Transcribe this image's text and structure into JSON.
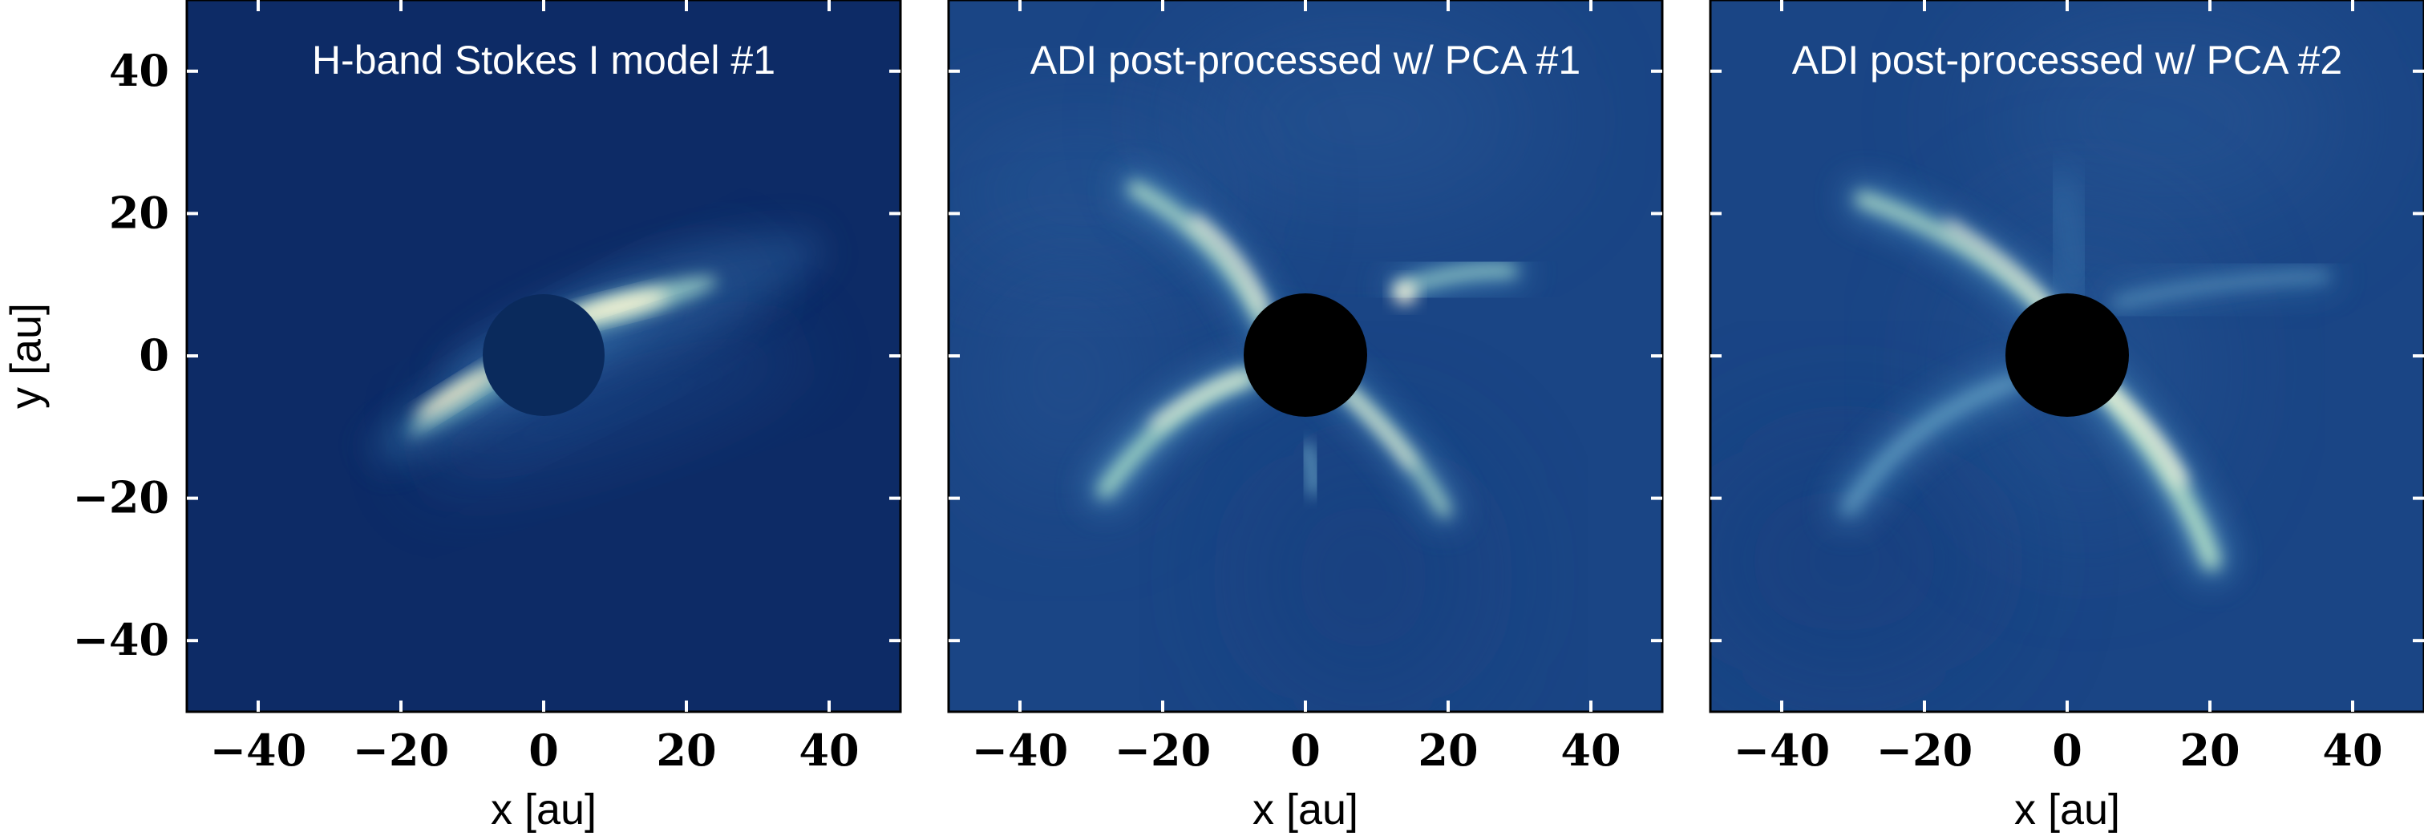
{
  "chart_data": [
    {
      "type": "heatmap",
      "title": "H-band Stokes I model #1",
      "xlabel": "x [au]",
      "ylabel": "y [au]",
      "xlim": [
        -50,
        50
      ],
      "ylim": [
        -50,
        50
      ],
      "xticks": [
        -40,
        -20,
        0,
        20,
        40
      ],
      "yticks": [
        -40,
        -20,
        0,
        20,
        40
      ],
      "xtick_labels": [
        "−40",
        "−20",
        "0",
        "20",
        "40"
      ],
      "ytick_labels": [
        "−40",
        "−20",
        "0",
        "20",
        "40"
      ],
      "grid": false,
      "mask": {
        "shape": "circle",
        "center": [
          0,
          0
        ],
        "radius_au": 8.5,
        "color": "#0a2a5c"
      },
      "colors": {
        "background": "#0d2b66",
        "high": "#fffbe0"
      }
    },
    {
      "type": "heatmap",
      "title": "ADI post-processed w/ PCA #1",
      "xlabel": "x [au]",
      "ylabel": "",
      "xlim": [
        -50,
        50
      ],
      "ylim": [
        -50,
        50
      ],
      "xticks": [
        -40,
        -20,
        0,
        20,
        40
      ],
      "yticks": [
        -40,
        -20,
        0,
        20,
        40
      ],
      "xtick_labels": [
        "−40",
        "−20",
        "0",
        "20",
        "40"
      ],
      "grid": false,
      "mask": {
        "shape": "circle",
        "center": [
          0,
          0
        ],
        "radius_au": 8.5,
        "color": "#000000"
      },
      "colors": {
        "background": "#1a4585",
        "high": "#fffbe0"
      }
    },
    {
      "type": "heatmap",
      "title": "ADI post-processed w/ PCA #2",
      "xlabel": "x [au]",
      "ylabel": "",
      "xlim": [
        -50,
        50
      ],
      "ylim": [
        -50,
        50
      ],
      "xticks": [
        -40,
        -20,
        0,
        20,
        40
      ],
      "yticks": [
        -40,
        -20,
        0,
        20,
        40
      ],
      "xtick_labels": [
        "−40",
        "−20",
        "0",
        "20",
        "40"
      ],
      "grid": false,
      "mask": {
        "shape": "circle",
        "center": [
          0,
          0
        ],
        "radius_au": 8.5,
        "color": "#000000"
      },
      "colors": {
        "background": "#1a4585",
        "high": "#fffbe0"
      }
    }
  ]
}
